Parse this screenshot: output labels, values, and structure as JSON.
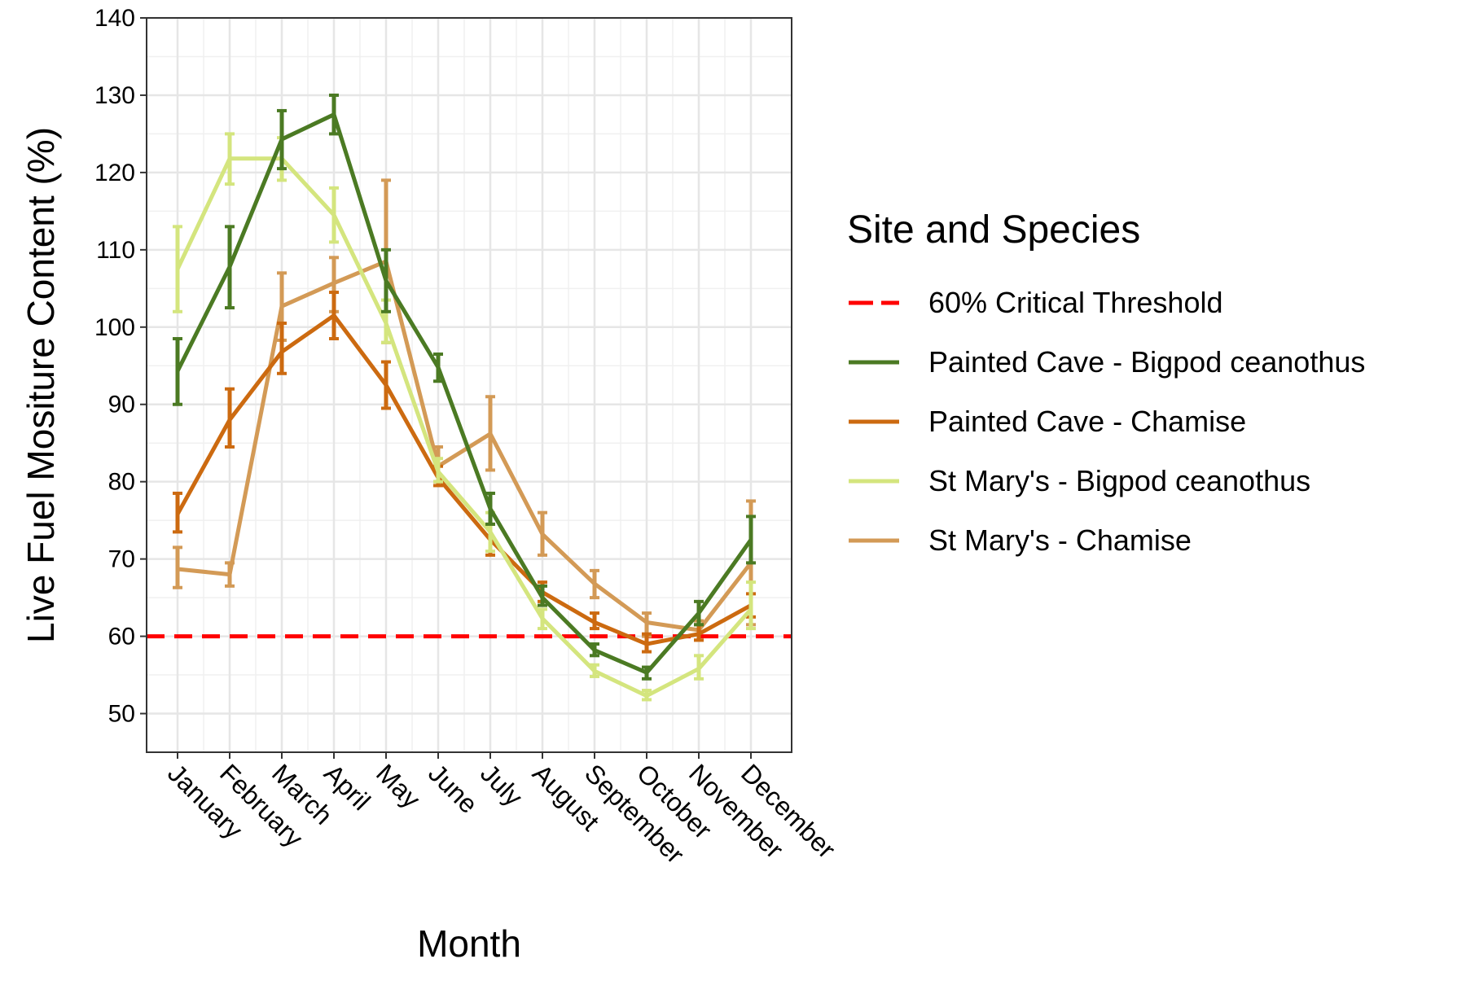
{
  "chart_data": {
    "type": "line",
    "xlabel": "Month",
    "ylabel": "Live Fuel Mositure Content (%)",
    "categories": [
      "January",
      "February",
      "March",
      "April",
      "May",
      "June",
      "July",
      "August",
      "September",
      "October",
      "November",
      "December"
    ],
    "ylim": [
      45,
      140
    ],
    "yticks": [
      50,
      60,
      70,
      80,
      90,
      100,
      110,
      120,
      130,
      140
    ],
    "grid": true,
    "legend": {
      "title": "Site and Species",
      "placement": "right",
      "entries": [
        {
          "label": "60% Critical Threshold",
          "color": "#ff0000",
          "style": "dashed"
        },
        {
          "label": "Painted Cave - Bigpod ceanothus",
          "color": "#4b7a23"
        },
        {
          "label": "Painted Cave - Chamise",
          "color": "#cc6a10"
        },
        {
          "label": "St Mary's - Bigpod ceanothus",
          "color": "#d4e57e"
        },
        {
          "label": "St Mary's - Chamise",
          "color": "#d39a56"
        }
      ]
    },
    "threshold": {
      "name": "60% Critical Threshold",
      "value": 60,
      "color": "#ff0000"
    },
    "series": [
      {
        "name": "St Mary's - Chamise",
        "color": "#d39a56",
        "values": [
          68.7,
          68.0,
          102.7,
          105.7,
          108.5,
          82.0,
          86.2,
          73.2,
          66.8,
          61.8,
          60.8,
          69.5
        ],
        "lower": [
          66.3,
          66.5,
          98.3,
          102.0,
          98.0,
          80.0,
          81.5,
          70.5,
          65.0,
          60.0,
          59.5,
          61.5
        ],
        "upper": [
          71.5,
          69.5,
          107.0,
          109.0,
          119.0,
          84.5,
          91.0,
          76.0,
          68.5,
          63.0,
          62.0,
          77.5
        ]
      },
      {
        "name": "Painted Cave - Chamise",
        "color": "#cc6a10",
        "values": [
          75.8,
          88.0,
          96.8,
          101.5,
          92.5,
          80.5,
          72.5,
          65.7,
          61.8,
          59.0,
          60.3,
          64.0
        ],
        "lower": [
          73.5,
          84.5,
          94.0,
          98.5,
          89.5,
          79.5,
          70.5,
          64.5,
          61.0,
          58.0,
          59.5,
          62.5
        ],
        "upper": [
          78.5,
          92.0,
          100.5,
          104.5,
          95.5,
          82.0,
          74.5,
          67.0,
          63.0,
          60.3,
          61.5,
          65.5
        ]
      },
      {
        "name": "St Mary's - Bigpod ceanothus",
        "color": "#d4e57e",
        "values": [
          107.5,
          121.8,
          121.8,
          114.5,
          100.5,
          81.3,
          73.5,
          62.3,
          55.5,
          52.3,
          55.8,
          63.5
        ],
        "lower": [
          102.0,
          118.5,
          119.0,
          111.0,
          98.0,
          80.0,
          71.0,
          61.0,
          54.8,
          51.8,
          54.5,
          61.0
        ],
        "upper": [
          113.0,
          125.0,
          124.5,
          118.0,
          103.5,
          83.0,
          76.0,
          63.5,
          56.3,
          53.0,
          57.5,
          67.0
        ]
      },
      {
        "name": "Painted Cave - Bigpod ceanothus",
        "color": "#4b7a23",
        "values": [
          94.3,
          107.8,
          124.3,
          127.5,
          106.0,
          94.8,
          76.5,
          65.0,
          58.2,
          55.3,
          63.0,
          72.5
        ],
        "lower": [
          90.0,
          102.5,
          120.5,
          125.0,
          102.0,
          93.0,
          74.5,
          64.0,
          57.5,
          54.5,
          61.5,
          69.5
        ],
        "upper": [
          98.5,
          113.0,
          128.0,
          130.0,
          110.0,
          96.5,
          78.5,
          66.5,
          59.0,
          56.0,
          64.5,
          75.5
        ]
      }
    ]
  }
}
